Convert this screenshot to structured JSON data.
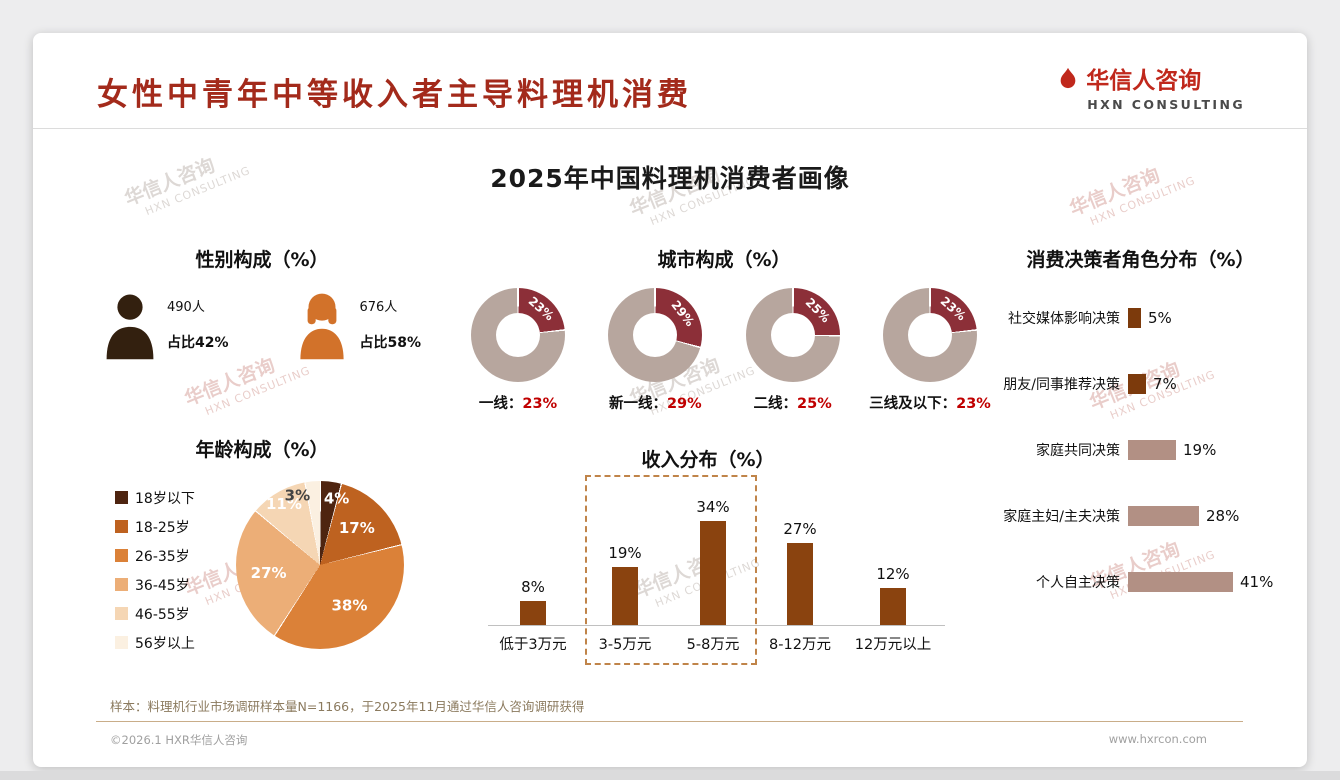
{
  "page": {
    "title": "女性中青年中等收入者主导料理机消费",
    "subtitle": "2025年中国料理机消费者画像",
    "footnote": "样本：料理机行业市场调研样本量N=1166，于2025年11月通过华信人咨询调研获得",
    "copyright": "©2026.1 HXR华信人咨询",
    "website": "www.hxrcon.com"
  },
  "logo": {
    "name": "华信人咨询",
    "tagline": "HXN CONSULTING"
  },
  "watermark": {
    "line1": "华信人咨询",
    "line2": "HXN CONSULTING"
  },
  "gender": {
    "title": "性别构成（%）",
    "male": {
      "count": "490人",
      "share": "占比42%"
    },
    "female": {
      "count": "676人",
      "share": "占比58%"
    }
  },
  "colors": {
    "title_red": "#A32A1B",
    "logo_red": "#C0281C",
    "percent_red": "#C00000",
    "male_icon": "#33200F",
    "female_icon": "#D2722A"
  },
  "chart_data": [
    {
      "id": "city",
      "type": "donut",
      "title": "城市构成（%）",
      "items": [
        {
          "label": "一线：",
          "value": 23
        },
        {
          "label": "新一线：",
          "value": 29
        },
        {
          "label": "二线：",
          "value": 25
        },
        {
          "label": "三线及以下：",
          "value": 23
        }
      ],
      "segment_color": "#8C2F38",
      "ring_color": "#B7A69E"
    },
    {
      "id": "age",
      "type": "pie",
      "title": "年龄构成（%）",
      "categories": [
        "18岁以下",
        "18-25岁",
        "26-35岁",
        "36-45岁",
        "46-55岁",
        "56岁以上"
      ],
      "values": [
        4,
        17,
        38,
        27,
        11,
        3
      ],
      "colors": [
        "#4E2410",
        "#BE6220",
        "#DB8138",
        "#ECAE77",
        "#F5D6B4",
        "#FBF0E1"
      ],
      "legend_position": "left"
    },
    {
      "id": "income",
      "type": "bar",
      "title": "收入分布（%）",
      "categories": [
        "低于3万元",
        "3-5万元",
        "5-8万元",
        "8-12万元",
        "12万元以上"
      ],
      "values": [
        8,
        19,
        34,
        27,
        12
      ],
      "bar_color": "#8A430F",
      "highlight_categories": [
        "3-5万元",
        "5-8万元"
      ],
      "ylim": [
        0,
        40
      ]
    },
    {
      "id": "decision",
      "type": "horizontal-bar",
      "title": "消费决策者角色分布（%）",
      "categories": [
        "社交媒体影响决策",
        "朋友/同事推荐决策",
        "家庭共同决策",
        "家庭主妇/主夫决策",
        "个人自主决策"
      ],
      "values": [
        5,
        7,
        19,
        28,
        41
      ],
      "bar_colors": [
        "#7C3A0C",
        "#7C3A0C",
        "#B29084",
        "#B29084",
        "#B29084"
      ],
      "xlim": [
        0,
        45
      ]
    }
  ]
}
